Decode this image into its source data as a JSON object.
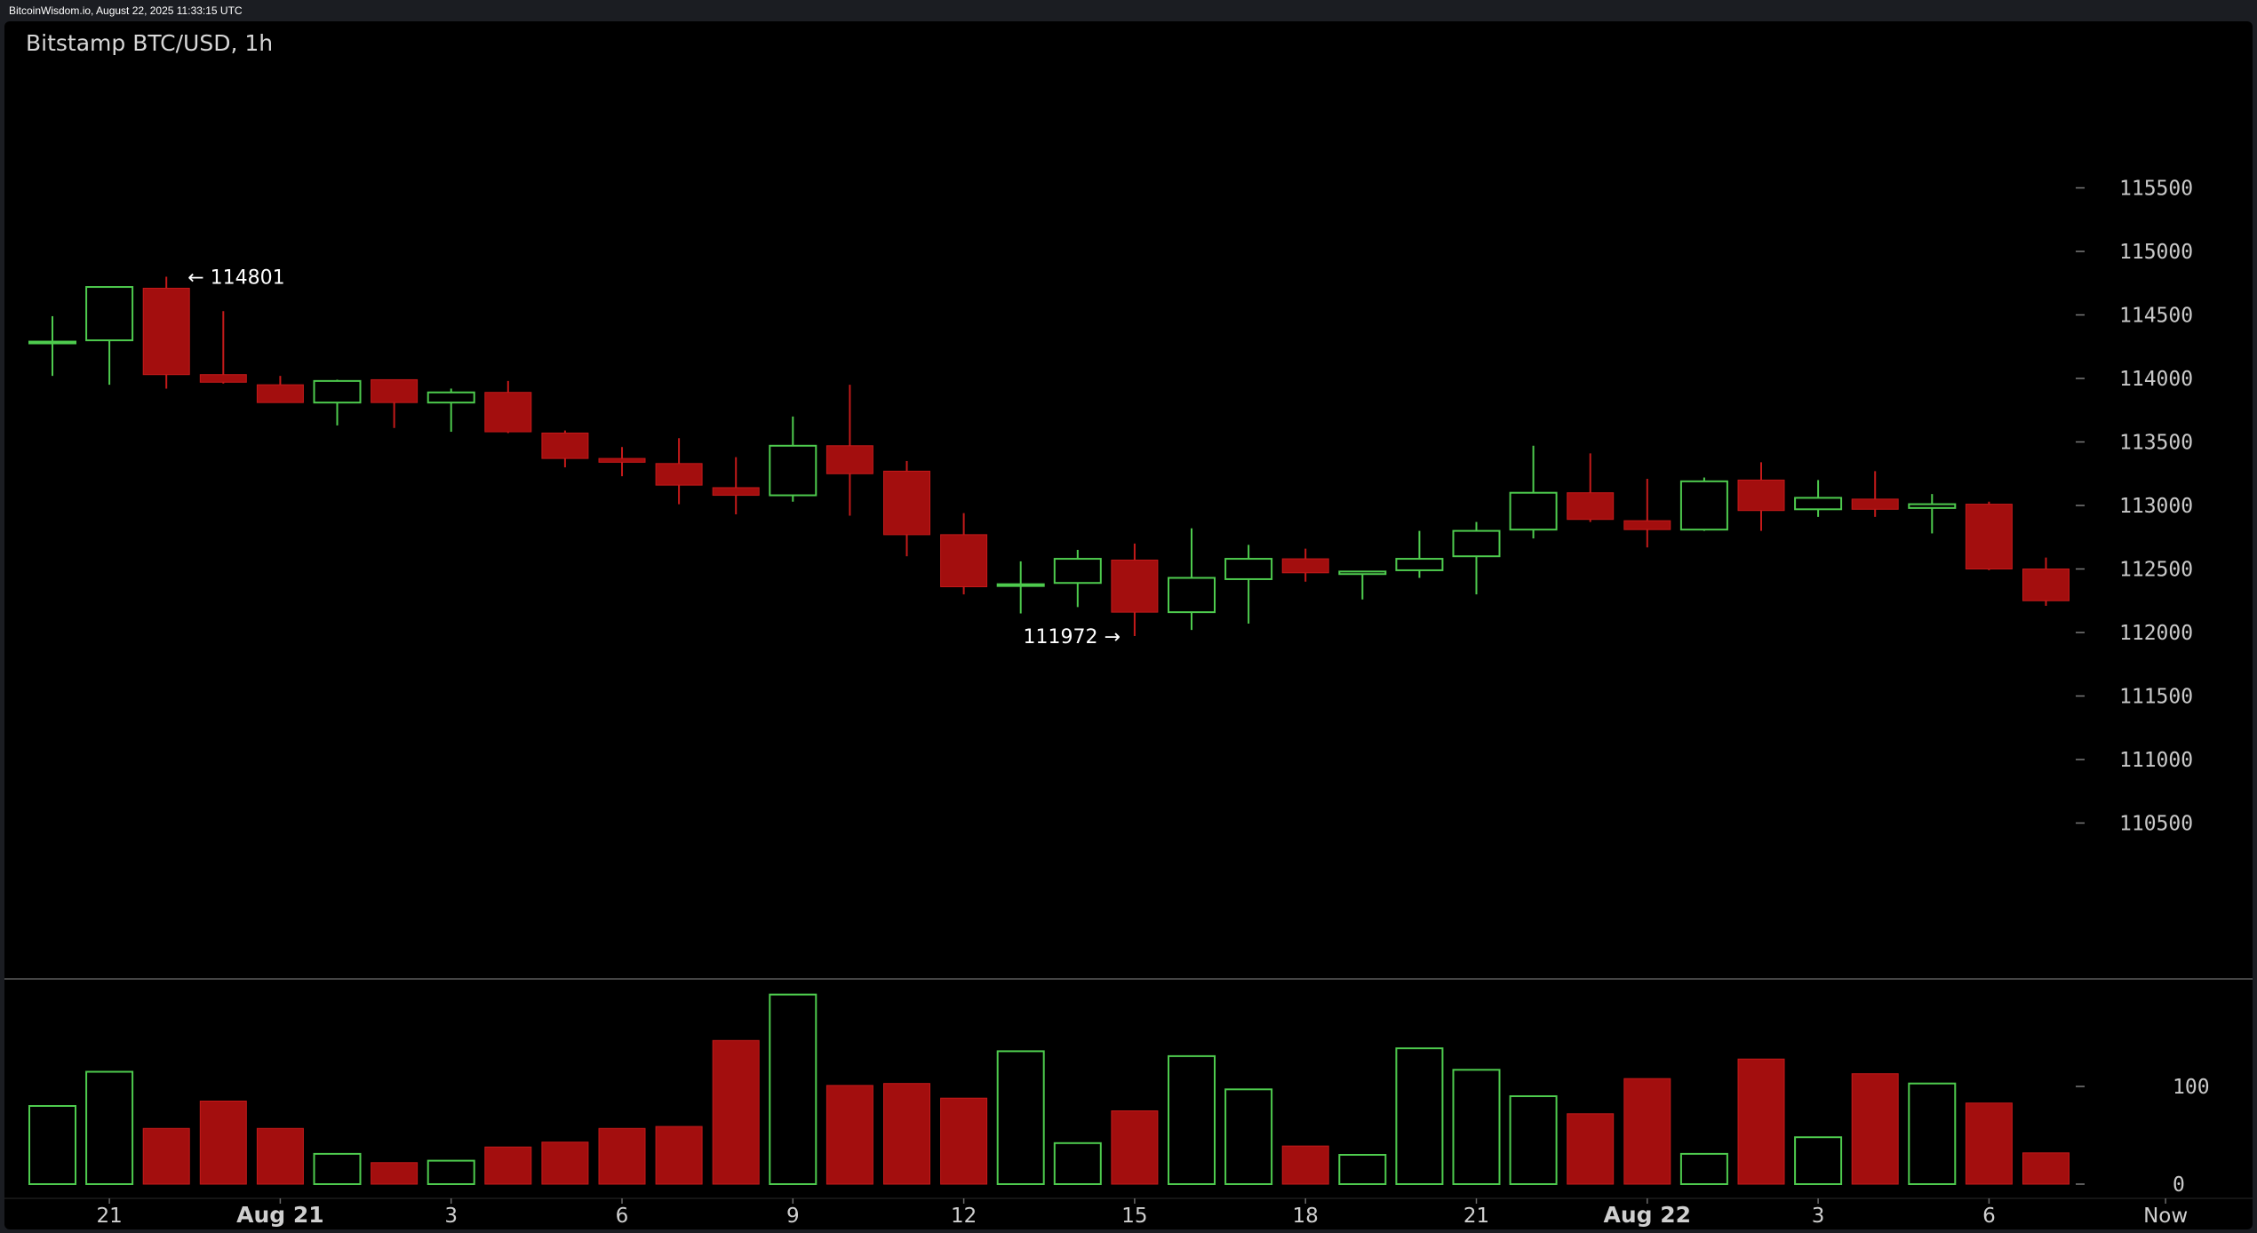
{
  "header": {
    "source_text": "BitcoinWisdom.io, August 22, 2025 11:33:15 UTC",
    "title": "Bitstamp BTC/USD, 1h"
  },
  "colors": {
    "up": "#4ecb4e",
    "down": "#a30e0e",
    "down_wick": "#c41a1a",
    "background": "#000000",
    "axis_text": "#c9c9c9"
  },
  "chart_data": {
    "type": "candlestick",
    "title": "Bitstamp BTC/USD, 1h",
    "ylim": [
      110000,
      116000
    ],
    "y_ticks": [
      110500,
      111000,
      111500,
      112000,
      112500,
      113000,
      113500,
      114000,
      114500,
      115000,
      115500
    ],
    "y_tick_labels": [
      "110500",
      "111000",
      "111500",
      "112000",
      "112500",
      "113000",
      "113500",
      "114000",
      "114500",
      "115000",
      "115500"
    ],
    "x_tick_labels": [
      {
        "label": "21",
        "bold": false,
        "at": 1
      },
      {
        "label": "Aug 21",
        "bold": true,
        "at": 4
      },
      {
        "label": "3",
        "bold": false,
        "at": 7
      },
      {
        "label": "6",
        "bold": false,
        "at": 10
      },
      {
        "label": "9",
        "bold": false,
        "at": 13
      },
      {
        "label": "12",
        "bold": false,
        "at": 16
      },
      {
        "label": "15",
        "bold": false,
        "at": 19
      },
      {
        "label": "18",
        "bold": false,
        "at": 22
      },
      {
        "label": "21",
        "bold": false,
        "at": 25
      },
      {
        "label": "Aug 22",
        "bold": true,
        "at": 28
      },
      {
        "label": "3",
        "bold": false,
        "at": 31
      },
      {
        "label": "6",
        "bold": false,
        "at": 34
      },
      {
        "label": "Now",
        "bold": false,
        "at": 37.1
      }
    ],
    "candles": [
      {
        "o": 114280,
        "h": 114490,
        "l": 114020,
        "c": 114290
      },
      {
        "o": 114300,
        "h": 114720,
        "l": 113950,
        "c": 114720
      },
      {
        "o": 114710,
        "h": 114801,
        "l": 113920,
        "c": 114030
      },
      {
        "o": 114030,
        "h": 114530,
        "l": 113960,
        "c": 113970
      },
      {
        "o": 113950,
        "h": 114020,
        "l": 113810,
        "c": 113810
      },
      {
        "o": 113810,
        "h": 113990,
        "l": 113630,
        "c": 113980
      },
      {
        "o": 113990,
        "h": 113990,
        "l": 113610,
        "c": 113810
      },
      {
        "o": 113810,
        "h": 113920,
        "l": 113580,
        "c": 113890
      },
      {
        "o": 113890,
        "h": 113980,
        "l": 113570,
        "c": 113580
      },
      {
        "o": 113570,
        "h": 113590,
        "l": 113300,
        "c": 113370
      },
      {
        "o": 113370,
        "h": 113460,
        "l": 113230,
        "c": 113340
      },
      {
        "o": 113330,
        "h": 113530,
        "l": 113010,
        "c": 113160
      },
      {
        "o": 113140,
        "h": 113380,
        "l": 112930,
        "c": 113080
      },
      {
        "o": 113080,
        "h": 113700,
        "l": 113030,
        "c": 113470
      },
      {
        "o": 113470,
        "h": 113950,
        "l": 112920,
        "c": 113250
      },
      {
        "o": 113270,
        "h": 113350,
        "l": 112600,
        "c": 112770
      },
      {
        "o": 112770,
        "h": 112940,
        "l": 112300,
        "c": 112360
      },
      {
        "o": 112370,
        "h": 112560,
        "l": 112150,
        "c": 112380
      },
      {
        "o": 112390,
        "h": 112650,
        "l": 112200,
        "c": 112580
      },
      {
        "o": 112570,
        "h": 112700,
        "l": 111972,
        "c": 112160
      },
      {
        "o": 112160,
        "h": 112820,
        "l": 112020,
        "c": 112430
      },
      {
        "o": 112420,
        "h": 112690,
        "l": 112070,
        "c": 112580
      },
      {
        "o": 112580,
        "h": 112660,
        "l": 112400,
        "c": 112470
      },
      {
        "o": 112460,
        "h": 112480,
        "l": 112260,
        "c": 112480
      },
      {
        "o": 112490,
        "h": 112800,
        "l": 112430,
        "c": 112580
      },
      {
        "o": 112600,
        "h": 112870,
        "l": 112300,
        "c": 112800
      },
      {
        "o": 112810,
        "h": 113470,
        "l": 112740,
        "c": 113100
      },
      {
        "o": 113100,
        "h": 113410,
        "l": 112870,
        "c": 112890
      },
      {
        "o": 112880,
        "h": 113210,
        "l": 112670,
        "c": 112810
      },
      {
        "o": 112810,
        "h": 113220,
        "l": 112800,
        "c": 113190
      },
      {
        "o": 113200,
        "h": 113340,
        "l": 112800,
        "c": 112960
      },
      {
        "o": 112970,
        "h": 113200,
        "l": 112910,
        "c": 113060
      },
      {
        "o": 113050,
        "h": 113270,
        "l": 112910,
        "c": 112970
      },
      {
        "o": 112980,
        "h": 113090,
        "l": 112780,
        "c": 113010
      },
      {
        "o": 113010,
        "h": 113030,
        "l": 112490,
        "c": 112500
      },
      {
        "o": 112500,
        "h": 112590,
        "l": 112210,
        "c": 112250
      }
    ],
    "annotations": [
      {
        "text": "← 114801",
        "value": 114801,
        "candle": 2,
        "side": "right"
      },
      {
        "text": "111972 →",
        "value": 111972,
        "candle": 19,
        "side": "left"
      }
    ],
    "volume": {
      "ylim": [
        0,
        200
      ],
      "y_ticks": [
        0,
        100
      ],
      "y_tick_labels": [
        "0",
        "100"
      ],
      "values": [
        80,
        115,
        57,
        85,
        57,
        31,
        22,
        24,
        38,
        43,
        57,
        59,
        147,
        194,
        101,
        103,
        88,
        136,
        42,
        75,
        131,
        97,
        39,
        30,
        139,
        117,
        90,
        72,
        108,
        31,
        128,
        48,
        113,
        103,
        83,
        32
      ]
    }
  }
}
